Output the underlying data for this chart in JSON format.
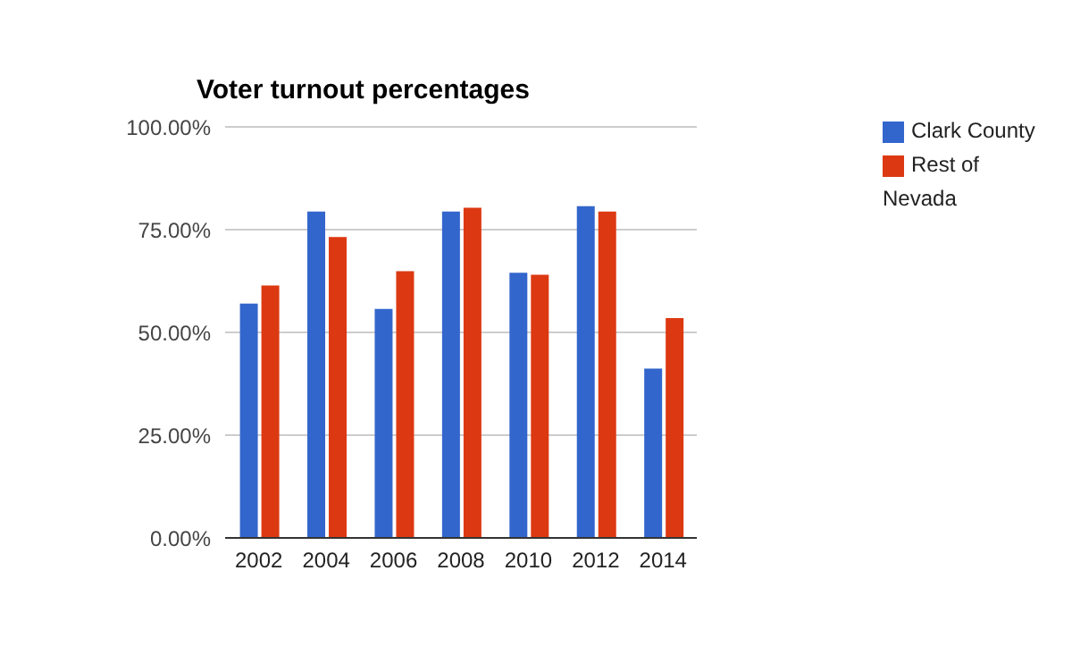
{
  "chart_data": {
    "type": "bar",
    "title": "Voter turnout percentages",
    "categories": [
      "2002",
      "2004",
      "2006",
      "2008",
      "2010",
      "2012",
      "2014"
    ],
    "series": [
      {
        "name": "Clark County",
        "color": "#3366cc",
        "values": [
          57,
          79.4,
          55.7,
          79.4,
          64.5,
          80.7,
          41.2
        ]
      },
      {
        "name": "Rest of Nevada",
        "color": "#dc3912",
        "values": [
          61.4,
          73.2,
          64.9,
          80.3,
          64,
          79.4,
          53.5
        ]
      }
    ],
    "ylim": [
      0,
      100
    ],
    "yticks": [
      {
        "value": 0,
        "label": "0.00%"
      },
      {
        "value": 25,
        "label": "25.00%"
      },
      {
        "value": 50,
        "label": "50.00%"
      },
      {
        "value": 75,
        "label": "75.00%"
      },
      {
        "value": 100,
        "label": "100.00%"
      }
    ],
    "grid": "y",
    "legend": "top right"
  }
}
